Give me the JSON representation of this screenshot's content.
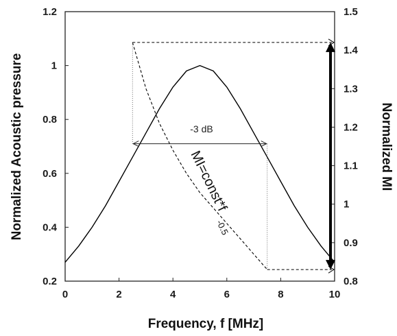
{
  "chart_data": {
    "type": "line",
    "xlabel": "Frequency, f [MHz]",
    "ylabel": "Normalized Acoustic pressure",
    "y2label": "Normalized MI",
    "xlim": [
      0,
      10
    ],
    "ylim": [
      0.2,
      1.2
    ],
    "y2lim": [
      0.8,
      1.5
    ],
    "xticks": [
      "0",
      "2",
      "4",
      "6",
      "8",
      "10"
    ],
    "yticks": [
      "0.2",
      "0.4",
      "0.6",
      "0.8",
      "1",
      "1.2"
    ],
    "y2ticks": [
      "0.8",
      "0.9",
      "1",
      "1.1",
      "1.2",
      "1.3",
      "1.4",
      "1.5"
    ],
    "grid": false,
    "series": [
      {
        "style": "solid",
        "axis": "left",
        "x": [
          0,
          0.5,
          1,
          1.5,
          2,
          2.5,
          3,
          3.5,
          4,
          4.5,
          5,
          5.5,
          6,
          6.5,
          7,
          7.5,
          8,
          8.5,
          9,
          9.5,
          10
        ],
        "y": [
          0.27,
          0.33,
          0.4,
          0.48,
          0.57,
          0.66,
          0.75,
          0.84,
          0.92,
          0.98,
          1.0,
          0.98,
          0.92,
          0.84,
          0.75,
          0.66,
          0.57,
          0.48,
          0.4,
          0.33,
          0.27
        ]
      },
      {
        "style": "dashed",
        "axis": "right",
        "x": [
          2.5,
          3,
          3.5,
          4,
          4.5,
          5,
          5.5,
          6,
          6.5,
          7,
          7.5
        ],
        "y": [
          1.42,
          1.3,
          1.21,
          1.14,
          1.08,
          1.03,
          0.99,
          0.95,
          0.91,
          0.87,
          0.83
        ]
      }
    ],
    "annotations": {
      "bandwidth_label": "-3 dB",
      "bandwidth_range": [
        2.5,
        7.5
      ],
      "bandwidth_level": 0.71,
      "mi_formula_main": "MI=const*f",
      "mi_formula_exp": "-0.5",
      "mi_range": [
        0.83,
        1.42
      ]
    }
  }
}
